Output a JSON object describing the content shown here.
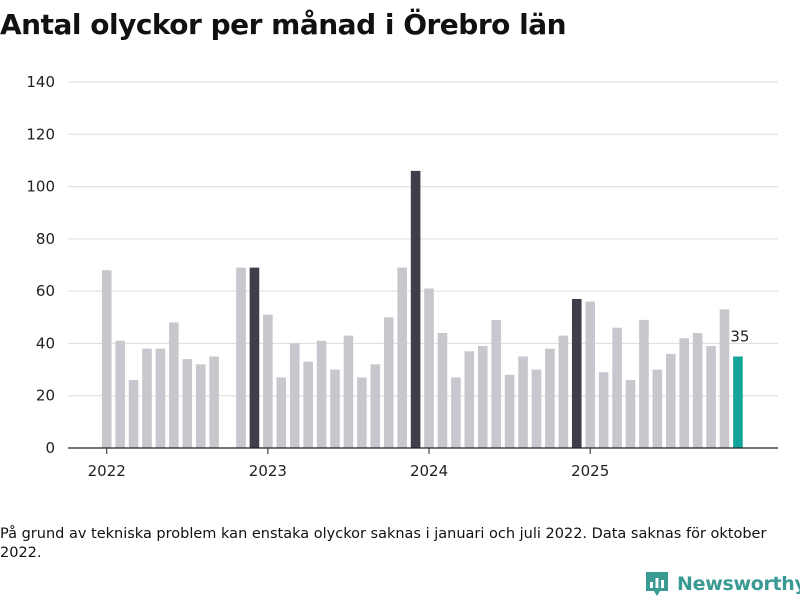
{
  "header": {
    "title": "Antal olyckor per månad i Örebro län"
  },
  "chart_data": {
    "type": "bar",
    "title": "Antal olyckor per månad i Örebro län",
    "xlabel": "",
    "ylabel": "",
    "ylim": [
      0,
      140
    ],
    "yticks": [
      0,
      20,
      40,
      60,
      80,
      100,
      120,
      140
    ],
    "xticks": [
      {
        "label": "2022",
        "index": 0
      },
      {
        "label": "2023",
        "index": 12
      },
      {
        "label": "2024",
        "index": 24
      },
      {
        "label": "2025",
        "index": 36
      }
    ],
    "categories": [
      "2022-01",
      "2022-02",
      "2022-03",
      "2022-04",
      "2022-05",
      "2022-06",
      "2022-07",
      "2022-08",
      "2022-09",
      "2022-10",
      "2022-11",
      "2022-12",
      "2023-01",
      "2023-02",
      "2023-03",
      "2023-04",
      "2023-05",
      "2023-06",
      "2023-07",
      "2023-08",
      "2023-09",
      "2023-10",
      "2023-11",
      "2023-12",
      "2024-01",
      "2024-02",
      "2024-03",
      "2024-04",
      "2024-05",
      "2024-06",
      "2024-07",
      "2024-08",
      "2024-09",
      "2024-10",
      "2024-11",
      "2024-12",
      "2025-01",
      "2025-02",
      "2025-03",
      "2025-04",
      "2025-05",
      "2025-06",
      "2025-07",
      "2025-08",
      "2025-09",
      "2025-10",
      "2025-11",
      "2025-12"
    ],
    "values": [
      68,
      41,
      26,
      38,
      38,
      48,
      34,
      32,
      35,
      null,
      69,
      69,
      51,
      27,
      40,
      33,
      41,
      30,
      43,
      27,
      32,
      50,
      69,
      106,
      61,
      44,
      27,
      37,
      39,
      49,
      28,
      35,
      30,
      38,
      43,
      57,
      56,
      29,
      46,
      26,
      49,
      30,
      36,
      42,
      44,
      39,
      53,
      35
    ],
    "highlight_december": true,
    "last_value_label": "35",
    "colors": {
      "default": "#c8c7cd",
      "december": "#3f3e4a",
      "latest": "#13a59a",
      "grid": "#dcdcdc",
      "axis": "#222222"
    }
  },
  "footnote": "På grund av tekniska problem kan enstaka olyckor saknas i januari och juli 2022. Data saknas för oktober 2022.",
  "brand": {
    "name": "Newsworthy",
    "icon": "newsworthy-logo-icon",
    "color": "#3a9a94"
  }
}
